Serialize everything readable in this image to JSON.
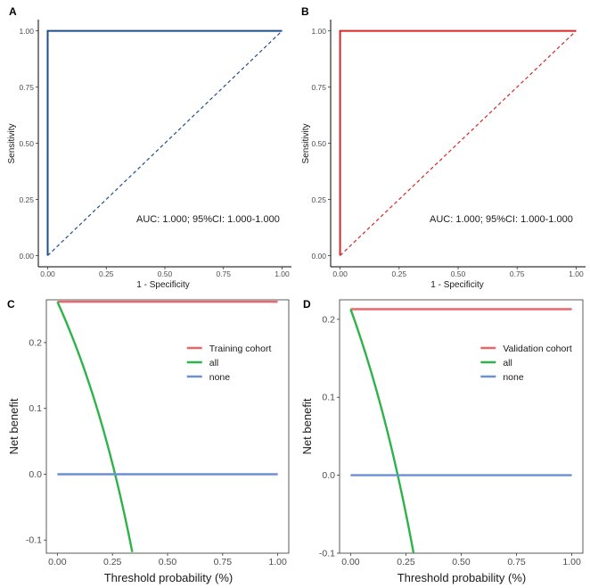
{
  "panels": {
    "A": {
      "letter": "A",
      "xlabel": "1 - Specificity",
      "ylabel": "Sensitivity",
      "annotation": "AUC: 1.000; 95%CI: 1.000-1.000"
    },
    "B": {
      "letter": "B",
      "xlabel": "1 - Specificity",
      "ylabel": "Sensitivity",
      "annotation": "AUC: 1.000; 95%CI: 1.000-1.000"
    },
    "C": {
      "letter": "C",
      "xlabel": "Threshold probability (%)",
      "ylabel": "Net benefit"
    },
    "D": {
      "letter": "D",
      "xlabel": "Threshold probability (%)",
      "ylabel": "Net benefit"
    }
  },
  "colors": {
    "roc_train": "#1f4e8c",
    "roc_valid": "#d62728",
    "model": "#e8686a",
    "all": "#2db34a",
    "none": "#6b8fd0"
  },
  "chart_data": [
    {
      "id": "A",
      "type": "line",
      "xlabel": "1 - Specificity",
      "ylabel": "Sensitivity",
      "xlim": [
        0,
        1
      ],
      "ylim": [
        0,
        1
      ],
      "xticks": [
        "0.00",
        "0.25",
        "0.50",
        "0.75",
        "1.00"
      ],
      "yticks": [
        "0.00",
        "0.25",
        "0.50",
        "0.75",
        "1.00"
      ],
      "series": [
        {
          "style": "solid",
          "color": "#1f4e8c",
          "x": [
            0,
            0,
            1
          ],
          "y": [
            0,
            1,
            1
          ]
        },
        {
          "style": "dashed",
          "color": "#1f4e8c",
          "x": [
            0,
            1
          ],
          "y": [
            0,
            1
          ]
        }
      ],
      "annotation": "AUC: 1.000; 95%CI: 1.000-1.000"
    },
    {
      "id": "B",
      "type": "line",
      "xlabel": "1 - Specificity",
      "ylabel": "Sensitivity",
      "xlim": [
        0,
        1
      ],
      "ylim": [
        0,
        1
      ],
      "xticks": [
        "0.00",
        "0.25",
        "0.50",
        "0.75",
        "1.00"
      ],
      "yticks": [
        "0.00",
        "0.25",
        "0.50",
        "0.75",
        "1.00"
      ],
      "series": [
        {
          "style": "solid",
          "color": "#d62728",
          "x": [
            0,
            0,
            1
          ],
          "y": [
            0,
            1,
            1
          ]
        },
        {
          "style": "dashed",
          "color": "#d62728",
          "x": [
            0,
            1
          ],
          "y": [
            0,
            1
          ]
        }
      ],
      "annotation": "AUC: 1.000; 95%CI: 1.000-1.000"
    },
    {
      "id": "C",
      "type": "line",
      "xlabel": "Threshold probability (%)",
      "ylabel": "Net benefit",
      "xlim": [
        0,
        1
      ],
      "ylim": [
        -0.12,
        0.265
      ],
      "xticks": [
        "0.00",
        "0.25",
        "0.50",
        "0.75",
        "1.00"
      ],
      "yticks": [
        "-0.1",
        "0.0",
        "0.1",
        "0.2"
      ],
      "prevalence": 0.262,
      "series": [
        {
          "name": "Training cohort",
          "color": "#e8686a",
          "kind": "model",
          "x": [
            0,
            1
          ],
          "y": [
            0.262,
            0.262
          ]
        },
        {
          "name": "all",
          "color": "#2db34a",
          "kind": "treat_all",
          "x_range": [
            0,
            0.34
          ]
        },
        {
          "name": "none",
          "color": "#6b8fd0",
          "kind": "none",
          "x": [
            0,
            1
          ],
          "y": [
            0,
            0
          ]
        }
      ],
      "legend_position": "right"
    },
    {
      "id": "D",
      "type": "line",
      "xlabel": "Threshold probability (%)",
      "ylabel": "Net benefit",
      "xlim": [
        0,
        1
      ],
      "ylim": [
        -0.1,
        0.225
      ],
      "xticks": [
        "0.00",
        "0.25",
        "0.50",
        "0.75",
        "1.00"
      ],
      "yticks": [
        "-0.1",
        "0.0",
        "0.1",
        "0.2"
      ],
      "prevalence": 0.213,
      "series": [
        {
          "name": "Validation cohort",
          "color": "#e8686a",
          "kind": "model",
          "x": [
            0,
            1
          ],
          "y": [
            0.213,
            0.213
          ]
        },
        {
          "name": "all",
          "color": "#2db34a",
          "kind": "treat_all",
          "x_range": [
            0,
            0.29
          ]
        },
        {
          "name": "none",
          "color": "#6b8fd0",
          "kind": "none",
          "x": [
            0,
            1
          ],
          "y": [
            0,
            0
          ]
        }
      ],
      "legend_position": "right"
    }
  ]
}
